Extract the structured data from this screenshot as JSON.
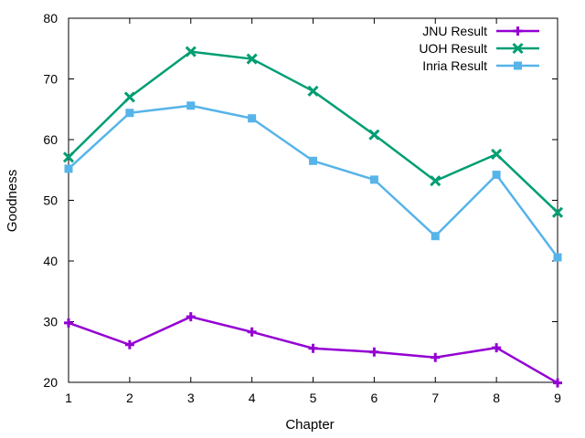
{
  "chart_data": {
    "type": "line",
    "title": "",
    "xlabel": "Chapter",
    "ylabel": "Goodness",
    "x": [
      1,
      2,
      3,
      4,
      5,
      6,
      7,
      8,
      9
    ],
    "xlim": [
      1,
      9
    ],
    "ylim": [
      20,
      80
    ],
    "xticks": [
      1,
      2,
      3,
      4,
      5,
      6,
      7,
      8,
      9
    ],
    "yticks": [
      20,
      30,
      40,
      50,
      60,
      70,
      80
    ],
    "grid": false,
    "legend_position": "top-right",
    "series": [
      {
        "name": "JNU Result",
        "color": "#9400d3",
        "marker": "plus",
        "values": [
          29.8,
          26.2,
          30.8,
          28.3,
          25.6,
          25.0,
          24.1,
          25.7,
          19.9
        ]
      },
      {
        "name": "UOH Result",
        "color": "#009e73",
        "marker": "x",
        "values": [
          57.1,
          67.0,
          74.5,
          73.3,
          68.0,
          60.8,
          53.2,
          57.6,
          48.0
        ]
      },
      {
        "name": "Inria Result",
        "color": "#56b4e9",
        "marker": "square",
        "values": [
          55.2,
          64.4,
          65.6,
          63.5,
          56.5,
          53.4,
          44.1,
          54.2,
          40.6
        ]
      }
    ]
  }
}
